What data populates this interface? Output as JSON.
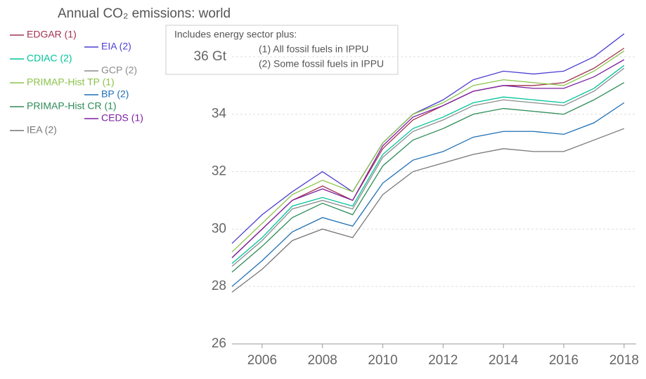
{
  "chart_data": {
    "type": "line",
    "title": "Annual CO₂ emissions: world",
    "annotations": [
      "Includes energy sector plus:",
      "(1) All fossil fuels in IPPU",
      "(2) Some fossil fuels in IPPU"
    ],
    "x": [
      2005,
      2006,
      2007,
      2008,
      2009,
      2010,
      2011,
      2012,
      2013,
      2014,
      2015,
      2016,
      2017,
      2018
    ],
    "xlim": [
      2005,
      2018.4
    ],
    "xticks": [
      2006,
      2008,
      2010,
      2012,
      2014,
      2016,
      2018
    ],
    "ylim": [
      26,
      37
    ],
    "yticks": [
      26,
      28,
      30,
      32,
      34,
      {
        "value": 36,
        "label": "36 Gt"
      }
    ],
    "grid": true,
    "series": [
      {
        "name": "EDGAR (1)",
        "color": "#a2334f",
        "values": [
          29.0,
          30.0,
          31.0,
          31.5,
          31.0,
          32.8,
          33.8,
          34.3,
          34.8,
          35.0,
          35.0,
          35.1,
          35.6,
          36.3
        ]
      },
      {
        "name": "EIA (2)",
        "color": "#4c3fd1",
        "values": [
          29.5,
          30.5,
          31.3,
          32.0,
          31.3,
          33.0,
          34.0,
          34.5,
          35.2,
          35.5,
          35.4,
          35.5,
          36.0,
          36.8
        ]
      },
      {
        "name": "CDIAC (2)",
        "color": "#00c49a",
        "values": [
          28.8,
          29.7,
          30.8,
          31.1,
          30.8,
          32.6,
          33.5,
          33.9,
          34.4,
          34.6,
          34.5,
          34.4,
          34.9,
          35.7
        ]
      },
      {
        "name": "GCP (2)",
        "color": "#8c8c8c",
        "values": [
          28.7,
          29.6,
          30.7,
          31.0,
          30.7,
          32.5,
          33.4,
          33.8,
          34.3,
          34.5,
          34.4,
          34.3,
          34.8,
          35.6
        ]
      },
      {
        "name": "PRIMAP-Hist TP (1)",
        "color": "#8bc34a",
        "values": [
          29.2,
          30.2,
          31.2,
          31.7,
          31.3,
          33.0,
          34.0,
          34.4,
          35.0,
          35.2,
          35.1,
          35.0,
          35.5,
          36.2
        ]
      },
      {
        "name": "BP (2)",
        "color": "#1f6fb4",
        "values": [
          28.0,
          28.9,
          29.9,
          30.4,
          30.1,
          31.6,
          32.4,
          32.7,
          33.2,
          33.4,
          33.4,
          33.3,
          33.7,
          34.4
        ]
      },
      {
        "name": "PRIMAP-Hist CR (1)",
        "color": "#2e8b57",
        "values": [
          28.5,
          29.4,
          30.4,
          30.9,
          30.5,
          32.2,
          33.1,
          33.5,
          34.0,
          34.2,
          34.1,
          34.0,
          34.5,
          35.1
        ]
      },
      {
        "name": "CEDS (1)",
        "color": "#7b1fa2",
        "values": [
          29.0,
          30.0,
          31.0,
          31.4,
          31.0,
          32.9,
          33.9,
          34.3,
          34.8,
          35.0,
          34.9,
          34.9,
          35.3,
          35.9
        ]
      },
      {
        "name": "IEA (2)",
        "color": "#777777",
        "values": [
          27.8,
          28.6,
          29.6,
          30.0,
          29.7,
          31.2,
          32.0,
          32.3,
          32.6,
          32.8,
          32.7,
          32.7,
          33.1,
          33.5
        ]
      }
    ]
  }
}
